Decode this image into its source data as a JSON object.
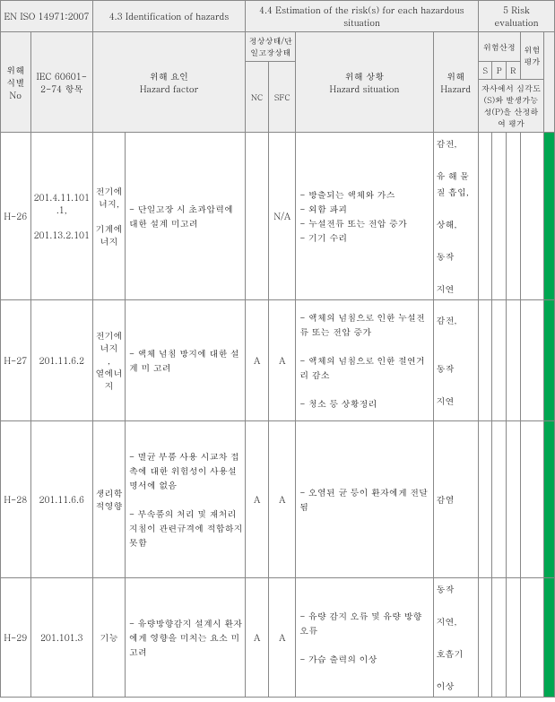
{
  "header": {
    "iso": "EN ISO 14971:2007",
    "sec43": "4.3 Identification of hazards",
    "sec44": "4.4 Estimation of the risk(s) for each hazardous situation",
    "sec5": "5 Risk evaluation",
    "col_no": "위해식별 No",
    "col_iec": "IEC 60601-2-74 항목",
    "col_hf": "위해 요인\nHazard factor",
    "col_state": "정상상태/단일고장상태",
    "col_nc": "NC",
    "col_sfc": "SFC",
    "col_hs": "위해 상황\nHazard situation",
    "col_hz": "위해\nHazard",
    "col_risk": "위험산정",
    "col_s": "S",
    "col_p": "P",
    "col_r": "R",
    "col_eval": "위험평가",
    "col_note": "자사에서 심각도(S)와 발생가능성(P)을 산정하여 평가"
  },
  "rows": [
    {
      "no": "H-26",
      "iec": "201.4.11.101.1,\n\n201.13.2.101",
      "energy": "전기에너지,\n\n기계에너지",
      "hf": "- 단일고장 시 초과압력에 대한 설계 미고려",
      "nc": "",
      "sfc": "N/A",
      "hs": "- 방출되는 액체와 가스\n- 외함 파괴\n- 누설전류 또는 전압 증가\n- 기기 수리",
      "hz": "감전,\n\n유 해 물질 흡입,\n\n상해,\n\n동작\n\n지연"
    },
    {
      "no": "H-27",
      "iec": "201.11.6.2",
      "energy": "전기에너지\n,\n열에너지",
      "hf": "- 액체 넘침 방지에 대한 설계 미 고려",
      "nc": "A",
      "sfc": "A",
      "hs": "- 액체의 넘침으로 인한 누설전류 또는 전압 증가\n\n- 액체의 넘침으로 인한 절연거리 감소\n\n- 청소 등 상황정리",
      "hz": "감전,\n\n\n동작\n\n지연"
    },
    {
      "no": "H-28",
      "iec": "201.11.6.6",
      "energy": "생리학적영향",
      "hf": "- 멸균 부품 사용 시교차 접촉에 대한 위험성이 사용설명서에 없음\n\n- 부속품의 처리 및 재처리 지침이 관련규격에 적합하지 못함",
      "nc": "A",
      "sfc": "A",
      "hs": "- 오염된 균 등이 환자에게 전달됨",
      "hz": "감염"
    },
    {
      "no": "H-29",
      "iec": "201.101.3",
      "energy": "기능",
      "hf": "- 유량방향감지 설계시 환자에게 영향을 미치는 요소 미 고려",
      "nc": "A",
      "sfc": "A",
      "hs": "- 유량 감지 오류 및 유량 방향 오류\n\n- 가습 출력의 이상",
      "hz": "동작\n\n지연,\n\n호흡기\n\n이상"
    }
  ]
}
